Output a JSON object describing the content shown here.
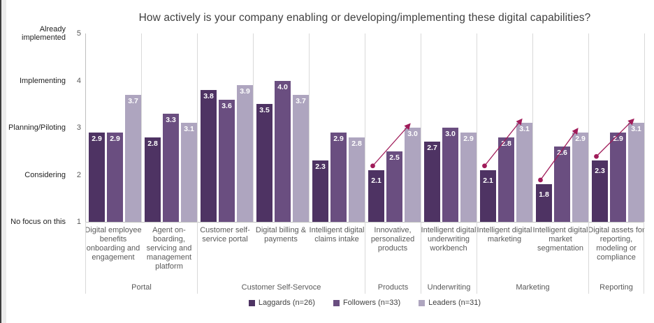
{
  "chart_data": {
    "type": "bar",
    "title": "How actively is your company enabling or developing/implementing these digital capabilities?",
    "y_axis": {
      "min": 1,
      "max": 5,
      "ticks": [
        {
          "value": 5,
          "label": "Already implemented"
        },
        {
          "value": 4,
          "label": "Implementing"
        },
        {
          "value": 3,
          "label": "Planning/Piloting"
        },
        {
          "value": 2,
          "label": "Considering"
        },
        {
          "value": 1,
          "label": "No focus on this"
        }
      ]
    },
    "series": [
      {
        "name": "Laggards (n=26)",
        "color": "#4e3363"
      },
      {
        "name": "Followers (n=33)",
        "color": "#6a4e80"
      },
      {
        "name": "Leaders (n=31)",
        "color": "#aea5bf"
      }
    ],
    "annotation_color": "#a01b59",
    "legend_position": "bottom",
    "grid": "vertical-category-separators",
    "groups": [
      {
        "label": "Portal",
        "categories": [
          {
            "label": "Digital employee\nbenefits\nonboarding and\nengagement",
            "values": [
              2.9,
              2.9,
              3.7
            ],
            "arrow": false
          },
          {
            "label": "Agent on-\nboarding,\nservicing and\nmanagement\nplatform",
            "values": [
              2.8,
              3.3,
              3.1
            ],
            "arrow": false
          }
        ]
      },
      {
        "label": "Customer Self-Servoce",
        "categories": [
          {
            "label": "Customer self-\nservice portal",
            "values": [
              3.8,
              3.6,
              3.9
            ],
            "arrow": false
          },
          {
            "label": "Digital billing &\npayments",
            "values": [
              3.5,
              4.0,
              3.7
            ],
            "arrow": false
          },
          {
            "label": "Intelligent digital\nclaims intake",
            "values": [
              2.3,
              2.9,
              2.8
            ],
            "arrow": false
          }
        ]
      },
      {
        "label": "Products",
        "categories": [
          {
            "label": "Innovative,\npersonalized\nproducts",
            "values": [
              2.1,
              2.5,
              3.0
            ],
            "arrow": true
          }
        ]
      },
      {
        "label": "Underwriting",
        "categories": [
          {
            "label": "Intelligent digital\nunderwriting\nworkbench",
            "values": [
              2.7,
              3.0,
              2.9
            ],
            "arrow": false
          }
        ]
      },
      {
        "label": "Marketing",
        "categories": [
          {
            "label": "Intelligent digital\nmarketing",
            "values": [
              2.1,
              2.8,
              3.1
            ],
            "arrow": true
          },
          {
            "label": "Intelligent digital\nmarket\nsegmentation",
            "values": [
              1.8,
              2.6,
              2.9
            ],
            "arrow": true
          }
        ]
      },
      {
        "label": "Reporting",
        "categories": [
          {
            "label": "Digital assets for\nreporting,\nmodeling or\ncompliance",
            "values": [
              2.3,
              2.9,
              3.1
            ],
            "arrow": true
          }
        ]
      }
    ]
  }
}
